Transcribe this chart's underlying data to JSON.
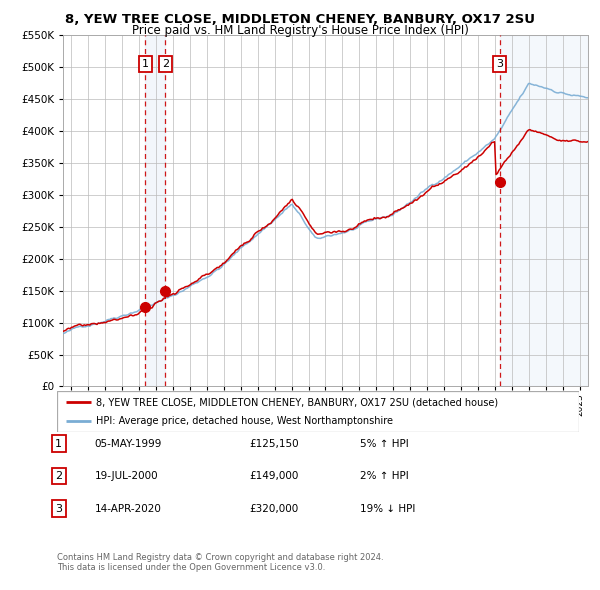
{
  "title1": "8, YEW TREE CLOSE, MIDDLETON CHENEY, BANBURY, OX17 2SU",
  "title2": "Price paid vs. HM Land Registry's House Price Index (HPI)",
  "legend1": "8, YEW TREE CLOSE, MIDDLETON CHENEY, BANBURY, OX17 2SU (detached house)",
  "legend2": "HPI: Average price, detached house, West Northamptonshire",
  "footnote1": "Contains HM Land Registry data © Crown copyright and database right 2024.",
  "footnote2": "This data is licensed under the Open Government Licence v3.0.",
  "transactions": [
    {
      "label": "1",
      "date": "05-MAY-1999",
      "price": 125150,
      "price_str": "£125,150",
      "pct": "5%",
      "dir": "↑",
      "year": 1999.35
    },
    {
      "label": "2",
      "date": "19-JUL-2000",
      "price": 149000,
      "price_str": "£149,000",
      "pct": "2%",
      "dir": "↑",
      "year": 2000.55
    },
    {
      "label": "3",
      "date": "14-APR-2020",
      "price": 320000,
      "price_str": "£320,000",
      "pct": "19%",
      "dir": "↓",
      "year": 2020.28
    }
  ],
  "xmin": 1994.5,
  "xmax": 2025.5,
  "ymin": 0,
  "ymax": 550000,
  "yticks": [
    0,
    50000,
    100000,
    150000,
    200000,
    250000,
    300000,
    350000,
    400000,
    450000,
    500000,
    550000
  ],
  "xticks": [
    1995,
    1996,
    1997,
    1998,
    1999,
    2000,
    2001,
    2002,
    2003,
    2004,
    2005,
    2006,
    2007,
    2008,
    2009,
    2010,
    2011,
    2012,
    2013,
    2014,
    2015,
    2016,
    2017,
    2018,
    2019,
    2020,
    2021,
    2022,
    2023,
    2024,
    2025
  ],
  "hpi_color": "#7aadd4",
  "price_color": "#cc0000",
  "shade_color": "#ccddf0",
  "dashed_color": "#cc0000",
  "marker_color": "#cc0000",
  "bg_color": "#ffffff",
  "grid_color": "#bbbbbb",
  "title1_fontsize": 9.5,
  "title2_fontsize": 8.5
}
